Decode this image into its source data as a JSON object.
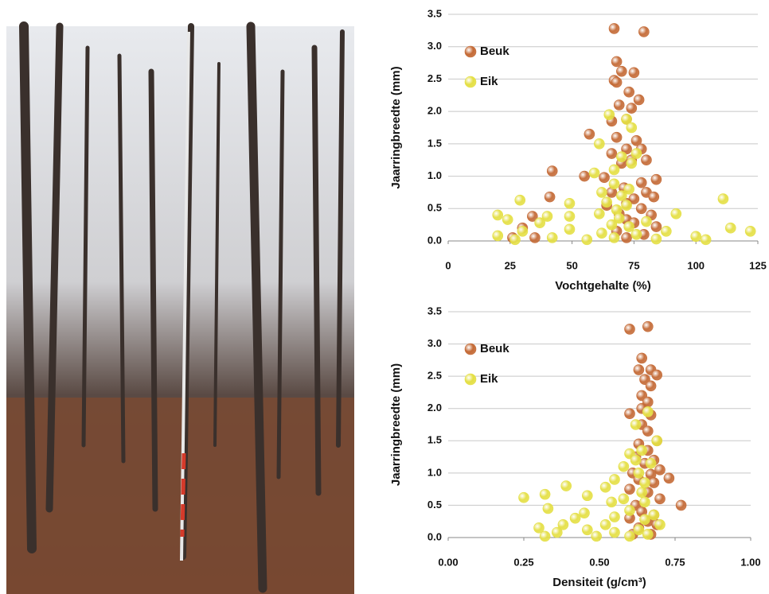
{
  "chart_data": [
    {
      "type": "scatter",
      "x_label": "Vochtgehalte (%)",
      "y_label": "Jaarringbreedte (mm)",
      "xlim": [
        0,
        125
      ],
      "xticks": [
        0,
        25,
        50,
        75,
        100,
        125
      ],
      "ylim": [
        0,
        3.5
      ],
      "yticks": [
        {
          "value": 0,
          "label": "0.0"
        },
        0.5,
        {
          "value": 1,
          "label": "1.0"
        },
        1.5,
        {
          "value": 2,
          "label": "2.0"
        },
        2.5,
        {
          "value": 3,
          "label": "3.0"
        },
        3.5
      ],
      "grid": true,
      "legend": "upper left",
      "series": [
        {
          "name": "Beuk",
          "color": "#c46a36",
          "x": [
            67,
            79,
            68,
            70,
            75,
            67,
            68,
            73,
            77,
            69,
            74,
            72,
            66,
            57,
            68,
            76,
            72,
            78,
            66,
            74,
            80,
            70,
            42,
            55,
            63,
            84,
            78,
            71,
            66,
            80,
            41,
            75,
            83,
            72,
            64,
            78,
            69,
            82,
            34,
            72,
            75,
            84,
            30,
            68,
            79,
            26,
            35,
            72
          ],
          "values": [
            3.28,
            3.23,
            2.77,
            2.62,
            2.6,
            2.48,
            2.45,
            2.3,
            2.18,
            2.1,
            2.05,
            1.88,
            1.85,
            1.65,
            1.6,
            1.55,
            1.42,
            1.42,
            1.35,
            1.25,
            1.25,
            1.2,
            1.08,
            1.0,
            0.98,
            0.95,
            0.9,
            0.82,
            0.75,
            0.75,
            0.68,
            0.65,
            0.68,
            0.58,
            0.55,
            0.5,
            0.42,
            0.4,
            0.38,
            0.33,
            0.28,
            0.22,
            0.2,
            0.15,
            0.1,
            0.05,
            0.05,
            0.05
          ]
        },
        {
          "name": "Eik",
          "color": "#e4df44",
          "x": [
            65,
            72,
            74,
            61,
            70,
            74,
            76,
            67,
            59,
            67,
            73,
            62,
            70,
            64,
            111,
            29,
            49,
            72,
            61,
            68,
            92,
            20,
            40,
            49,
            24,
            69,
            80,
            37,
            66,
            73,
            88,
            114,
            122,
            49,
            30,
            62,
            76,
            20,
            100,
            42,
            67,
            84,
            27,
            56,
            104
          ],
          "values": [
            1.95,
            1.88,
            1.75,
            1.5,
            1.3,
            1.2,
            1.35,
            1.1,
            1.05,
            0.88,
            0.8,
            0.75,
            0.7,
            0.6,
            0.65,
            0.63,
            0.58,
            0.55,
            0.42,
            0.48,
            0.42,
            0.4,
            0.38,
            0.38,
            0.33,
            0.35,
            0.3,
            0.28,
            0.25,
            0.22,
            0.15,
            0.2,
            0.15,
            0.18,
            0.15,
            0.12,
            0.1,
            0.08,
            0.07,
            0.05,
            0.05,
            0.03,
            0.02,
            0.02,
            0.02
          ]
        }
      ]
    },
    {
      "type": "scatter",
      "x_label": "Densiteit (g/cm³)",
      "y_label": "Jaarringbreedte (mm)",
      "xlim": [
        0,
        1
      ],
      "xticks": [
        {
          "value": 0,
          "label": "0.00"
        },
        0.25,
        {
          "value": 0.5,
          "label": "0.50"
        },
        0.75,
        {
          "value": 1,
          "label": "1.00"
        }
      ],
      "ylim": [
        0,
        3.5
      ],
      "yticks": [
        {
          "value": 0,
          "label": "0.0"
        },
        0.5,
        {
          "value": 1,
          "label": "1.0"
        },
        1.5,
        {
          "value": 2,
          "label": "2.0"
        },
        2.5,
        {
          "value": 3,
          "label": "3.0"
        },
        3.5
      ],
      "grid": true,
      "legend": "upper left",
      "series": [
        {
          "name": "Beuk",
          "color": "#c46a36",
          "x": [
            0.6,
            0.66,
            0.64,
            0.63,
            0.67,
            0.69,
            0.65,
            0.67,
            0.64,
            0.66,
            0.64,
            0.6,
            0.67,
            0.64,
            0.66,
            0.69,
            0.63,
            0.66,
            0.62,
            0.68,
            0.65,
            0.7,
            0.61,
            0.67,
            0.73,
            0.63,
            0.68,
            0.6,
            0.66,
            0.7,
            0.77,
            0.62,
            0.64,
            0.68,
            0.6,
            0.66,
            0.63,
            0.69,
            0.61,
            0.67
          ],
          "values": [
            3.23,
            3.27,
            2.78,
            2.6,
            2.6,
            2.52,
            2.45,
            2.35,
            2.2,
            2.1,
            2.0,
            1.92,
            1.9,
            1.75,
            1.65,
            1.5,
            1.45,
            1.35,
            1.25,
            1.2,
            1.15,
            1.05,
            1.0,
            0.98,
            0.92,
            0.9,
            0.85,
            0.75,
            0.7,
            0.6,
            0.5,
            0.5,
            0.4,
            0.35,
            0.3,
            0.25,
            0.15,
            0.2,
            0.05,
            0.05
          ]
        },
        {
          "name": "Eik",
          "color": "#e4df44",
          "x": [
            0.66,
            0.62,
            0.69,
            0.6,
            0.64,
            0.62,
            0.67,
            0.58,
            0.63,
            0.55,
            0.65,
            0.39,
            0.52,
            0.64,
            0.46,
            0.32,
            0.25,
            0.58,
            0.54,
            0.65,
            0.33,
            0.6,
            0.45,
            0.68,
            0.55,
            0.42,
            0.65,
            0.38,
            0.52,
            0.7,
            0.3,
            0.46,
            0.63,
            0.36,
            0.55,
            0.66,
            0.32,
            0.49,
            0.6
          ],
          "values": [
            1.95,
            1.75,
            1.5,
            1.3,
            1.35,
            1.2,
            1.15,
            1.1,
            1.0,
            0.9,
            0.85,
            0.8,
            0.78,
            0.7,
            0.65,
            0.67,
            0.62,
            0.6,
            0.55,
            0.55,
            0.45,
            0.42,
            0.38,
            0.35,
            0.32,
            0.3,
            0.28,
            0.2,
            0.2,
            0.2,
            0.15,
            0.12,
            0.12,
            0.08,
            0.08,
            0.05,
            0.02,
            0.02,
            0.02
          ]
        }
      ]
    }
  ]
}
